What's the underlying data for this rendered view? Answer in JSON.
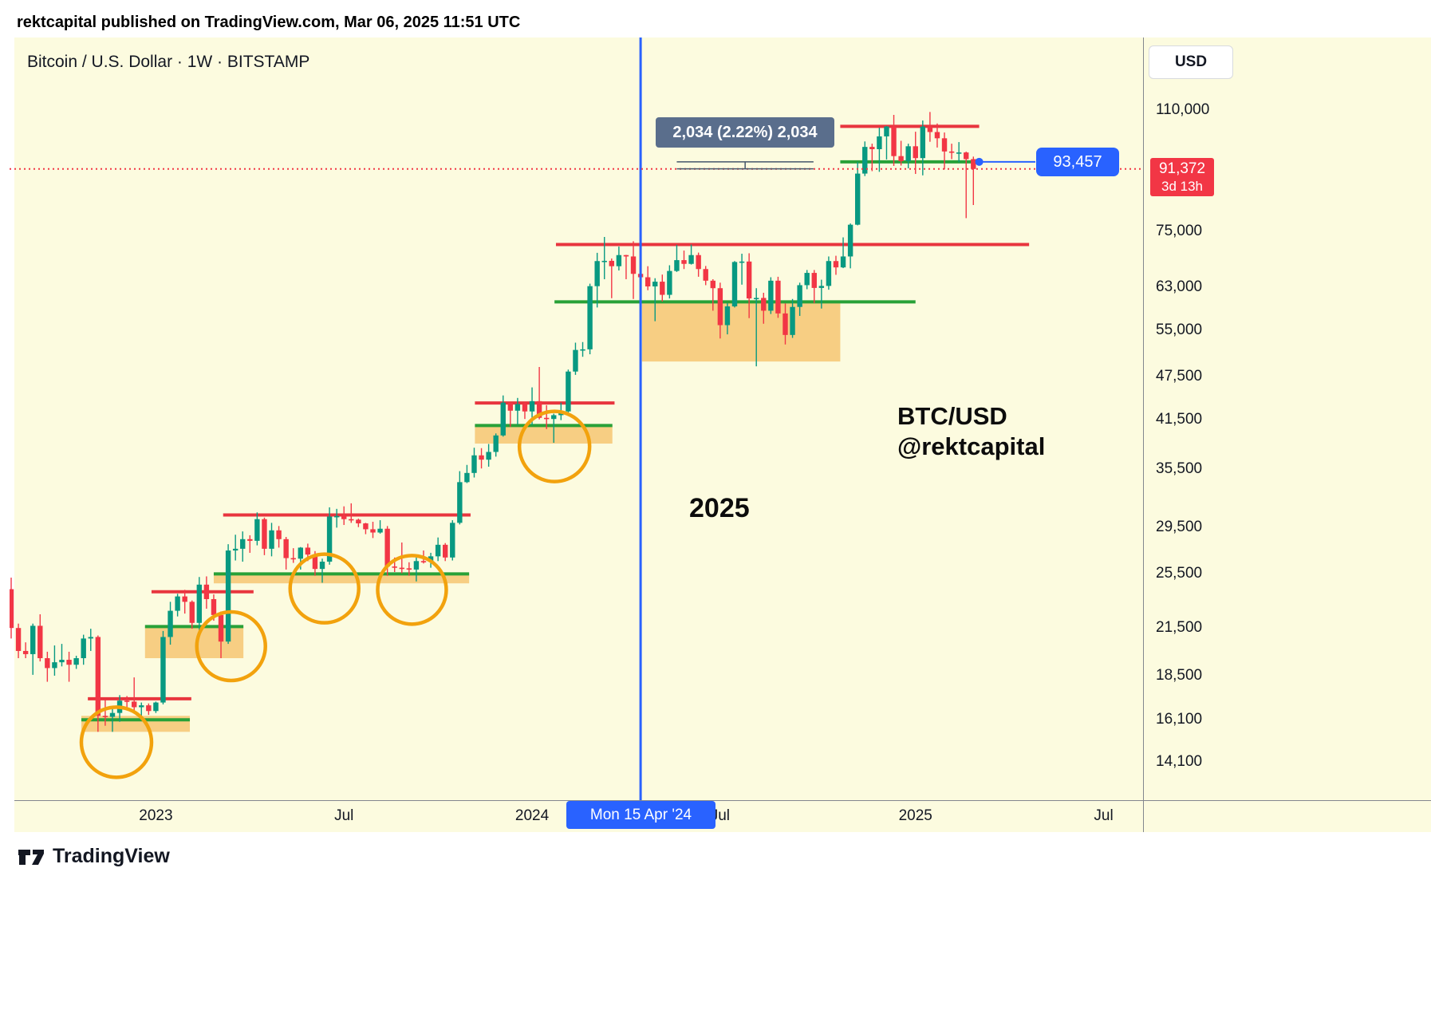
{
  "attribution": "rektcapital published on TradingView.com, Mar 06, 2025 11:51 UTC",
  "header": {
    "symbol_line": "Bitcoin / U.S. Dollar · 1W · BITSTAMP"
  },
  "annotations": {
    "watermark_line1": "BTC/USD",
    "watermark_line2": "@rektcapital",
    "year_label": "2025",
    "measure_label": "2,034 (2.22%) 2,034"
  },
  "price_axis": {
    "currency": "USD",
    "last_price": "91,372",
    "countdown": "3d 13h",
    "level_label": "93,457",
    "ticks": [
      {
        "label": "110,000",
        "price": 110000
      },
      {
        "label": "75,000",
        "price": 75000
      },
      {
        "label": "63,000",
        "price": 63000
      },
      {
        "label": "55,000",
        "price": 55000
      },
      {
        "label": "47,500",
        "price": 47500
      },
      {
        "label": "41,500",
        "price": 41500
      },
      {
        "label": "35,500",
        "price": 35500
      },
      {
        "label": "29,500",
        "price": 29500
      },
      {
        "label": "25,500",
        "price": 25500
      },
      {
        "label": "21,500",
        "price": 21500
      },
      {
        "label": "18,500",
        "price": 18500
      },
      {
        "label": "16,100",
        "price": 16100
      },
      {
        "label": "14,100",
        "price": 14100
      }
    ]
  },
  "time_axis": {
    "labels": [
      {
        "text": "2023",
        "index": 20
      },
      {
        "text": "Jul",
        "index": 46
      },
      {
        "text": "2024",
        "index": 72
      },
      {
        "text": "Jul",
        "index": 98
      },
      {
        "text": "2025",
        "index": 125
      },
      {
        "text": "Jul",
        "index": 151
      }
    ],
    "crosshair": "Mon 15 Apr '24"
  },
  "footer": {
    "brand": "TradingView"
  },
  "colors": {
    "up": "#089981",
    "down": "#F23645",
    "support": "#28A138",
    "resistance": "#E8353E",
    "zone": "#F6C979",
    "circle": "#F2A20D",
    "blue": "#2962FF",
    "background": "#FCFBDF",
    "measure": "#44566b"
  },
  "chart_data": {
    "type": "candlestick",
    "title": "Bitcoin / U.S. Dollar · 1W · BITSTAMP",
    "symbol": "BTC/USD",
    "timeframe": "1W",
    "exchange": "BITSTAMP",
    "scale": "log",
    "current_price": 91372,
    "last_candle_countdown": "3d 13h",
    "y_axis_ticks": [
      110000,
      75000,
      63000,
      55000,
      47500,
      41500,
      35500,
      29500,
      25500,
      21500,
      18500,
      16100,
      14100
    ],
    "candles": [
      [
        "2022-08-15",
        24300,
        25200,
        20800,
        21500
      ],
      [
        "2022-08-22",
        21500,
        21800,
        19550,
        20000
      ],
      [
        "2022-08-29",
        20000,
        20550,
        19550,
        19800
      ],
      [
        "2022-09-05",
        19800,
        21800,
        18550,
        21650
      ],
      [
        "2022-09-12",
        21650,
        22450,
        19350,
        19550
      ],
      [
        "2022-09-19",
        19550,
        19950,
        18150,
        18950
      ],
      [
        "2022-09-26",
        18950,
        20350,
        18500,
        19300
      ],
      [
        "2022-10-03",
        19300,
        20450,
        19050,
        19450
      ],
      [
        "2022-10-10",
        19450,
        19950,
        18150,
        19150
      ],
      [
        "2022-10-17",
        19150,
        19700,
        18900,
        19550
      ],
      [
        "2022-10-24",
        19550,
        21050,
        19150,
        20800
      ],
      [
        "2022-10-31",
        20800,
        21450,
        20000,
        20900
      ],
      [
        "2022-11-07",
        20900,
        21000,
        15500,
        16300
      ],
      [
        "2022-11-14",
        16300,
        17150,
        15800,
        16250
      ],
      [
        "2022-11-21",
        16250,
        16700,
        15500,
        16450
      ],
      [
        "2022-11-28",
        16450,
        17400,
        16000,
        17100
      ],
      [
        "2022-12-05",
        17100,
        17350,
        16700,
        17050
      ],
      [
        "2022-12-12",
        17050,
        18400,
        16550,
        16750
      ],
      [
        "2022-12-19",
        16750,
        17000,
        16250,
        16850
      ],
      [
        "2022-12-26",
        16850,
        16950,
        16350,
        16550
      ],
      [
        "2023-01-02",
        16550,
        17050,
        16450,
        17000
      ],
      [
        "2023-01-09",
        17000,
        21300,
        16900,
        20900
      ],
      [
        "2023-01-16",
        20900,
        23350,
        20400,
        22700
      ],
      [
        "2023-01-23",
        22700,
        23950,
        22300,
        23750
      ],
      [
        "2023-01-30",
        23750,
        24250,
        22500,
        23350
      ],
      [
        "2023-02-06",
        23350,
        23450,
        21450,
        21850
      ],
      [
        "2023-02-13",
        21850,
        25250,
        21350,
        24650
      ],
      [
        "2023-02-20",
        24650,
        25300,
        22850,
        23550
      ],
      [
        "2023-02-27",
        23550,
        23900,
        22000,
        22400
      ],
      [
        "2023-03-06",
        22400,
        22650,
        19550,
        20600
      ],
      [
        "2023-03-13",
        20600,
        28000,
        20450,
        27450
      ],
      [
        "2023-03-20",
        27450,
        28850,
        26600,
        27600
      ],
      [
        "2023-03-27",
        27600,
        29150,
        26500,
        28450
      ],
      [
        "2023-04-03",
        28450,
        28800,
        27250,
        28300
      ],
      [
        "2023-04-10",
        28300,
        30950,
        27900,
        30300
      ],
      [
        "2023-04-17",
        30300,
        30450,
        27050,
        27600
      ],
      [
        "2023-04-24",
        27600,
        29950,
        26950,
        29250
      ],
      [
        "2023-05-01",
        29250,
        29650,
        27700,
        28450
      ],
      [
        "2023-05-08",
        28450,
        28650,
        25850,
        26800
      ],
      [
        "2023-05-15",
        26800,
        27650,
        26400,
        26750
      ],
      [
        "2023-05-22",
        26750,
        27750,
        25850,
        27700
      ],
      [
        "2023-05-29",
        27700,
        28050,
        26550,
        27100
      ],
      [
        "2023-06-05",
        27100,
        27400,
        25350,
        25900
      ],
      [
        "2023-06-12",
        25900,
        26750,
        24800,
        26500
      ],
      [
        "2023-06-19",
        26500,
        31450,
        26250,
        30550
      ],
      [
        "2023-06-26",
        30550,
        31300,
        29500,
        30600
      ],
      [
        "2023-07-03",
        30600,
        31550,
        29750,
        30300
      ],
      [
        "2023-07-10",
        30300,
        31850,
        29950,
        30250
      ],
      [
        "2023-07-17",
        30250,
        30350,
        29550,
        29900
      ],
      [
        "2023-07-24",
        29900,
        29950,
        28900,
        29350
      ],
      [
        "2023-07-31",
        29350,
        30050,
        28550,
        29050
      ],
      [
        "2023-08-07",
        29050,
        30200,
        28950,
        29400
      ],
      [
        "2023-08-14",
        29400,
        29650,
        25350,
        26100
      ],
      [
        "2023-08-21",
        26100,
        26850,
        25650,
        26000
      ],
      [
        "2023-08-28",
        26000,
        28150,
        25550,
        25950
      ],
      [
        "2023-09-04",
        25950,
        26450,
        25350,
        25850
      ],
      [
        "2023-09-11",
        25850,
        26850,
        24900,
        26550
      ],
      [
        "2023-09-18",
        26550,
        27450,
        26350,
        26500
      ],
      [
        "2023-09-25",
        26500,
        27250,
        26000,
        26950
      ],
      [
        "2023-10-02",
        26950,
        28600,
        26550,
        27950
      ],
      [
        "2023-10-09",
        27950,
        28100,
        26550,
        26850
      ],
      [
        "2023-10-16",
        26850,
        30200,
        26600,
        29950
      ],
      [
        "2023-10-23",
        29950,
        35250,
        29800,
        34050
      ],
      [
        "2023-10-30",
        34050,
        35950,
        33950,
        35050
      ],
      [
        "2023-11-06",
        35050,
        37950,
        34550,
        37050
      ],
      [
        "2023-11-13",
        37050,
        37900,
        35550,
        36550
      ],
      [
        "2023-11-20",
        36550,
        38400,
        35750,
        37450
      ],
      [
        "2023-11-27",
        37450,
        39700,
        36900,
        39450
      ],
      [
        "2023-12-04",
        39450,
        44750,
        39300,
        43750
      ],
      [
        "2023-12-11",
        43750,
        43800,
        40550,
        42650
      ],
      [
        "2023-12-18",
        42650,
        44400,
        40800,
        43550
      ],
      [
        "2023-12-25",
        43550,
        43800,
        41550,
        42550
      ],
      [
        "2024-01-01",
        42550,
        45900,
        40750,
        43950
      ],
      [
        "2024-01-08",
        43950,
        48950,
        41500,
        41700
      ],
      [
        "2024-01-15",
        41700,
        43400,
        40250,
        41550
      ],
      [
        "2024-01-22",
        41550,
        42250,
        38550,
        42050
      ],
      [
        "2024-01-29",
        42050,
        43750,
        41400,
        42550
      ],
      [
        "2024-02-05",
        42550,
        48550,
        42250,
        48250
      ],
      [
        "2024-02-12",
        48250,
        52850,
        47750,
        51650
      ],
      [
        "2024-02-19",
        51650,
        52950,
        50550,
        51750
      ],
      [
        "2024-02-26",
        51750,
        63650,
        50950,
        63150
      ],
      [
        "2024-03-04",
        63150,
        70150,
        59050,
        68350
      ],
      [
        "2024-03-11",
        68350,
        73750,
        64550,
        68400
      ],
      [
        "2024-03-18",
        68400,
        68900,
        60800,
        67250
      ],
      [
        "2024-03-25",
        67250,
        71550,
        66350,
        69650
      ],
      [
        "2024-04-01",
        69650,
        69700,
        64550,
        69350
      ],
      [
        "2024-04-08",
        69350,
        72750,
        60650,
        65650
      ],
      [
        "2024-04-15",
        65650,
        67050,
        59650,
        64950
      ],
      [
        "2024-04-22",
        64950,
        67250,
        62350,
        63100
      ],
      [
        "2024-04-29",
        63100,
        64750,
        56550,
        64050
      ],
      [
        "2024-05-06",
        64050,
        65500,
        60150,
        61450
      ],
      [
        "2024-05-13",
        61450,
        67450,
        60750,
        66250
      ],
      [
        "2024-05-20",
        66250,
        71950,
        66050,
        68550
      ],
      [
        "2024-05-27",
        68550,
        70650,
        66650,
        67750
      ],
      [
        "2024-06-03",
        67750,
        72000,
        67600,
        69650
      ],
      [
        "2024-06-10",
        69650,
        70200,
        65050,
        66650
      ],
      [
        "2024-06-17",
        66650,
        67300,
        63350,
        64250
      ],
      [
        "2024-06-24",
        64250,
        64550,
        58450,
        62750
      ],
      [
        "2024-07-01",
        62750,
        63850,
        53550,
        55850
      ],
      [
        "2024-07-08",
        55850,
        59850,
        54250,
        59250
      ],
      [
        "2024-07-15",
        59250,
        68350,
        59050,
        68150
      ],
      [
        "2024-07-22",
        68150,
        69950,
        63450,
        68250
      ],
      [
        "2024-07-29",
        68250,
        70050,
        57100,
        60750
      ],
      [
        "2024-08-05",
        60750,
        62750,
        49050,
        60850
      ],
      [
        "2024-08-12",
        60850,
        61850,
        56100,
        58450
      ],
      [
        "2024-08-19",
        58450,
        64950,
        57850,
        64250
      ],
      [
        "2024-08-26",
        64250,
        65050,
        57150,
        57950
      ],
      [
        "2024-09-02",
        57950,
        59800,
        52550,
        54150
      ],
      [
        "2024-09-09",
        54150,
        60650,
        53650,
        59150
      ],
      [
        "2024-09-16",
        59150,
        63850,
        57500,
        63350
      ],
      [
        "2024-09-23",
        63350,
        66450,
        62550,
        65850
      ],
      [
        "2024-09-30",
        65850,
        66450,
        59850,
        62800
      ],
      [
        "2024-10-07",
        62800,
        64450,
        58850,
        63200
      ],
      [
        "2024-10-14",
        63200,
        69350,
        62450,
        68350
      ],
      [
        "2024-10-21",
        68350,
        69500,
        65450,
        67000
      ],
      [
        "2024-10-28",
        67000,
        73650,
        66850,
        69350
      ],
      [
        "2024-11-04",
        69350,
        76950,
        66800,
        76650
      ],
      [
        "2024-11-11",
        76650,
        93450,
        76500,
        90050
      ],
      [
        "2024-11-18",
        90050,
        99650,
        89350,
        97950
      ],
      [
        "2024-11-25",
        97950,
        98950,
        90750,
        97250
      ],
      [
        "2024-12-02",
        97250,
        104050,
        90550,
        101250
      ],
      [
        "2024-12-09",
        101250,
        104650,
        94150,
        104450
      ],
      [
        "2024-12-16",
        104450,
        108350,
        92250,
        95150
      ],
      [
        "2024-12-23",
        95150,
        99850,
        92350,
        93650
      ],
      [
        "2024-12-30",
        93650,
        98950,
        91550,
        98150
      ],
      [
        "2025-01-06",
        98150,
        102750,
        89950,
        94550
      ],
      [
        "2025-01-13",
        94550,
        106450,
        89550,
        104450
      ],
      [
        "2025-01-20",
        104450,
        109350,
        99550,
        102650
      ],
      [
        "2025-01-27",
        102650,
        105450,
        97750,
        100650
      ],
      [
        "2025-02-03",
        100650,
        102500,
        91250,
        96550
      ],
      [
        "2025-02-10",
        96550,
        98950,
        94250,
        96150
      ],
      [
        "2025-02-17",
        96150,
        99450,
        93350,
        96250
      ],
      [
        "2025-02-24",
        96250,
        96500,
        78250,
        94250
      ],
      [
        "2025-03-03",
        94250,
        95000,
        81550,
        91372
      ]
    ],
    "levels": {
      "resistance": [
        {
          "price": 104500,
          "i1": 114.6,
          "i2": 133.8
        },
        {
          "price": 72000,
          "i1": 75.3,
          "i2": 140.7
        },
        {
          "price": 43700,
          "i1": 64.1,
          "i2": 83.4
        },
        {
          "price": 30700,
          "i1": 29.3,
          "i2": 63.5
        },
        {
          "price": 24100,
          "i1": 19.4,
          "i2": 33.5
        },
        {
          "price": 17200,
          "i1": 10.6,
          "i2": 24.9
        }
      ],
      "support": [
        {
          "price": 93457,
          "i1": 114.6,
          "i2": 133.8
        },
        {
          "price": 60100,
          "i1": 75.1,
          "i2": 125.0
        },
        {
          "price": 40700,
          "i1": 64.1,
          "i2": 83.1
        },
        {
          "price": 25500,
          "i1": 28.0,
          "i2": 63.3
        },
        {
          "price": 21600,
          "i1": 18.5,
          "i2": 32.1
        },
        {
          "price": 16100,
          "i1": 9.7,
          "i2": 24.7
        }
      ]
    },
    "zones": [
      {
        "p1": 16300,
        "p2": 15500,
        "i1": 9.7,
        "i2": 24.7
      },
      {
        "p1": 21600,
        "p2": 19550,
        "i1": 18.5,
        "i2": 32.1
      },
      {
        "p1": 25500,
        "p2": 24750,
        "i1": 28.0,
        "i2": 63.3
      },
      {
        "p1": 40700,
        "p2": 38450,
        "i1": 64.1,
        "i2": 83.1
      },
      {
        "p1": 60100,
        "p2": 49800,
        "i1": 87.2,
        "i2": 114.6
      }
    ],
    "circles": [
      {
        "i": 14.55,
        "p": 15000,
        "r": 44
      },
      {
        "i": 30.4,
        "p": 20300,
        "r": 43
      },
      {
        "i": 43.3,
        "p": 24350,
        "r": 43
      },
      {
        "i": 55.4,
        "p": 24250,
        "r": 43
      },
      {
        "i": 75.1,
        "p": 38100,
        "r": 44
      }
    ],
    "vline": {
      "date": "2024-04-15",
      "index": 87
    },
    "last_price": 91372,
    "blue_level": {
      "price": 93457,
      "dot_index": 133.8
    },
    "measured_move": {
      "from": 93434,
      "to": 91400,
      "i1": 92,
      "i2": 110.9,
      "label": "2,034 (2.22%) 2,034"
    }
  }
}
